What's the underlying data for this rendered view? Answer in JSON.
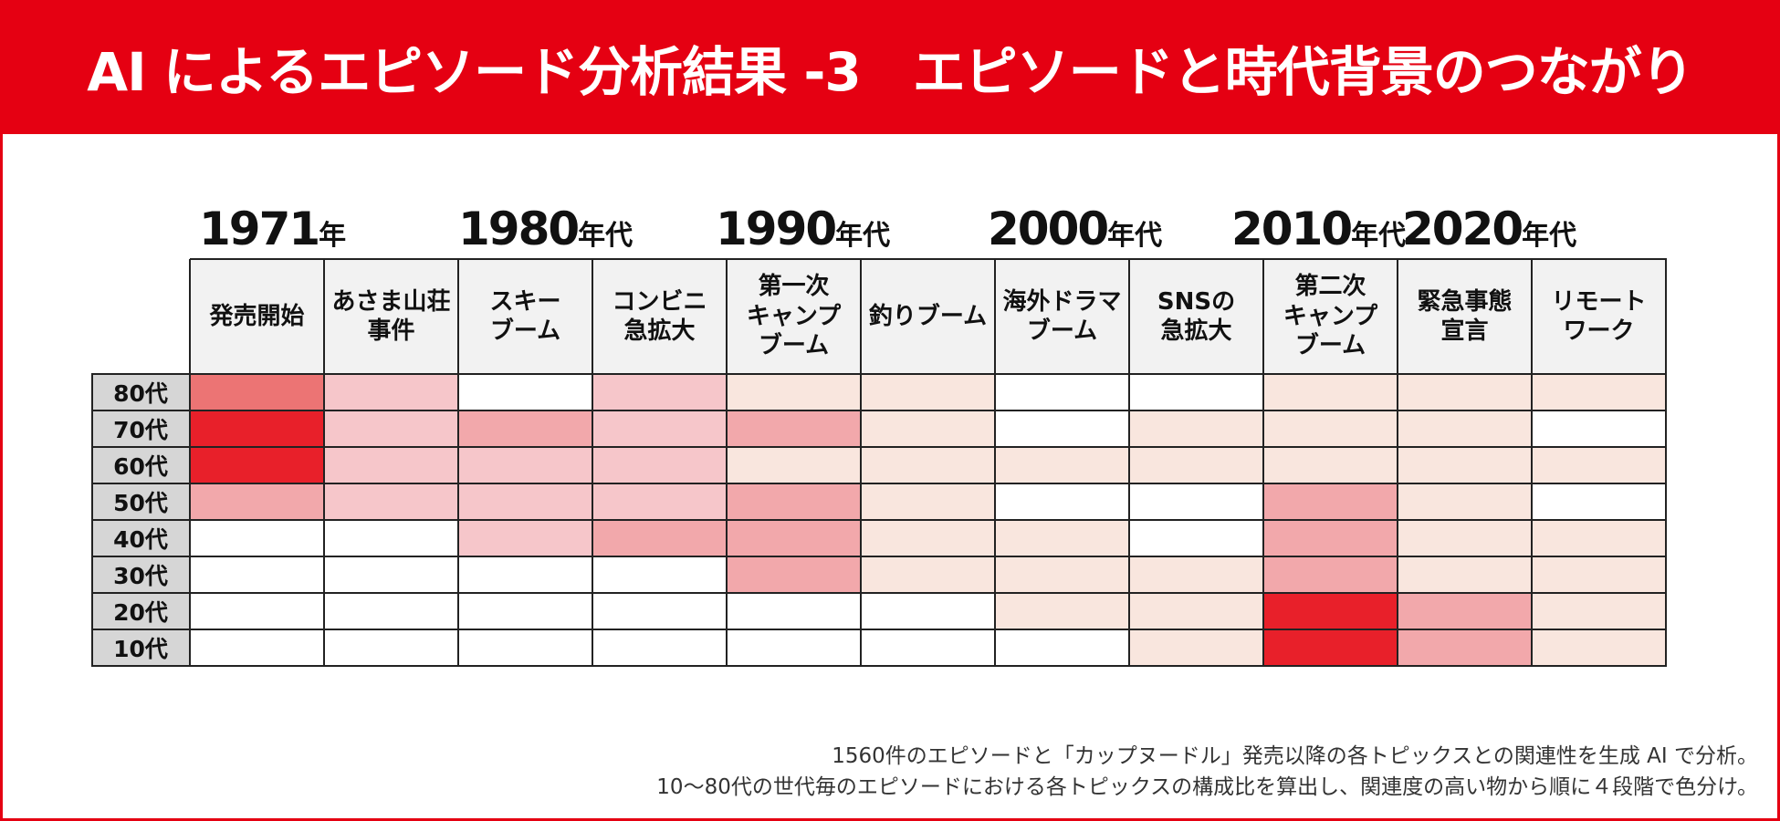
{
  "title": "AI によるエピソード分析結果 -3　エピソードと時代背景のつながり",
  "eras": [
    {
      "year": "1971",
      "suffix": "年"
    },
    {
      "year": "1980",
      "suffix": "年代"
    },
    {
      "year": "1990",
      "suffix": "年代"
    },
    {
      "year": "2000",
      "suffix": "年代"
    },
    {
      "year": "2010",
      "suffix": "年代"
    },
    {
      "year": "2020",
      "suffix": "年代"
    }
  ],
  "chart_data": {
    "type": "heatmap",
    "title": "AI によるエピソード分析結果 -3　エピソードと時代背景のつながり",
    "scale": "4段階（0=無色, 1=最淡, 4=最濃）",
    "columns": [
      "発売開始",
      "あさま山荘\n事件",
      "スキー\nブーム",
      "コンビニ\n急拡大",
      "第一次\nキャンプ\nブーム",
      "釣りブーム",
      "海外ドラマ\nブーム",
      "SNSの\n急拡大",
      "第二次\nキャンプ\nブーム",
      "緊急事態\n宣言",
      "リモート\nワーク"
    ],
    "rows": [
      "80代",
      "70代",
      "60代",
      "50代",
      "40代",
      "30代",
      "20代",
      "10代"
    ],
    "values": [
      [
        3,
        2,
        0,
        2,
        1,
        1,
        0,
        0,
        1,
        1,
        1
      ],
      [
        4,
        2,
        3,
        2,
        3,
        1,
        0,
        1,
        1,
        1,
        0
      ],
      [
        4,
        2,
        2,
        2,
        1,
        1,
        1,
        1,
        1,
        1,
        1
      ],
      [
        3,
        2,
        2,
        2,
        3,
        1,
        0,
        0,
        3,
        1,
        0
      ],
      [
        0,
        0,
        2,
        3,
        3,
        1,
        1,
        0,
        3,
        1,
        1
      ],
      [
        0,
        0,
        0,
        0,
        3,
        1,
        1,
        1,
        3,
        1,
        1
      ],
      [
        0,
        0,
        0,
        0,
        0,
        0,
        1,
        1,
        4,
        3,
        1
      ],
      [
        0,
        0,
        0,
        0,
        0,
        0,
        0,
        1,
        4,
        3,
        1
      ]
    ],
    "colors": [
      "#ffffff",
      "#f9e6de",
      "#f6c6ca",
      "#f2a8ab",
      "#e8202a",
      "#ec7474"
    ]
  },
  "footnote": {
    "line1": "1560件のエピソードと「カップヌードル」発売以降の各トピックスとの関連性を生成 AI で分析。",
    "line2": "10～80代の世代毎のエピソードにおける各トピックスの構成比を算出し、関連度の高い物から順に４段階で色分け。"
  }
}
